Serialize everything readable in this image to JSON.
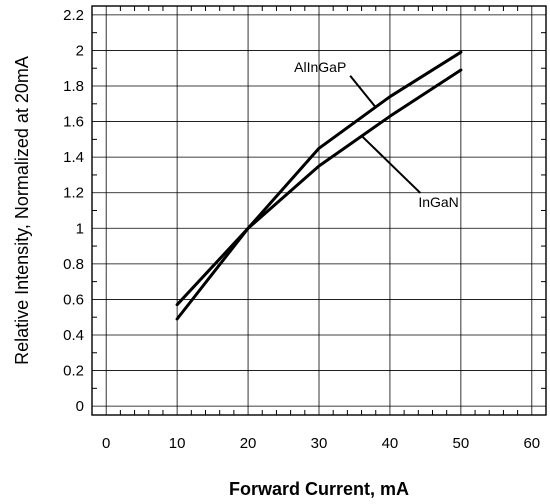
{
  "chart_data": {
    "type": "line",
    "xlabel": "Forward Current, mA",
    "ylabel": "Relative Intensity, Normalized at 20mA",
    "xlim": [
      -2,
      62
    ],
    "ylim": [
      -0.05,
      2.25
    ],
    "xticks": [
      0,
      10,
      20,
      30,
      40,
      50,
      60
    ],
    "yticks": [
      0,
      0.2,
      0.4,
      0.6,
      0.8,
      1,
      1.2,
      1.4,
      1.6,
      1.8,
      2,
      2.2
    ],
    "grid": true,
    "series": [
      {
        "name": "AlInGaP",
        "x": [
          10,
          20,
          30,
          40,
          50
        ],
        "y": [
          0.49,
          1.0,
          1.45,
          1.74,
          1.99
        ]
      },
      {
        "name": "InGaN",
        "x": [
          10,
          20,
          30,
          40,
          50
        ],
        "y": [
          0.57,
          1.0,
          1.35,
          1.63,
          1.89
        ]
      }
    ],
    "annotations": [
      {
        "text": "AlInGaP",
        "label_at": [
          26.5,
          1.88
        ],
        "pointer_to": [
          38,
          1.68
        ]
      },
      {
        "text": "InGaN",
        "label_at": [
          44,
          1.12
        ],
        "pointer_to": [
          36,
          1.52
        ]
      }
    ]
  }
}
